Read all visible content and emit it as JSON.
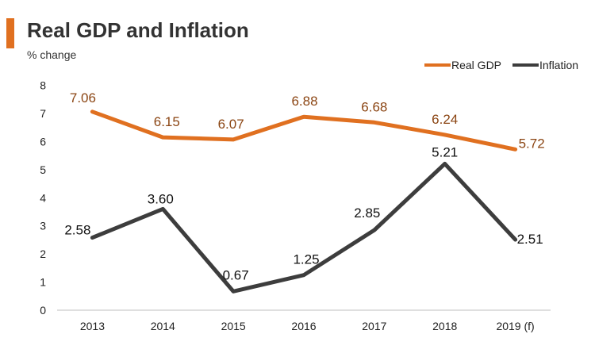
{
  "header": {
    "title": "Real GDP and Inflation",
    "subtitle": "% change"
  },
  "colors": {
    "accent": "#E07020",
    "real_gdp": "#E07020",
    "inflation": "#3D3D3D",
    "gdp_label": "#8B4513"
  },
  "chart_data": {
    "type": "line",
    "title": "Real GDP and Inflation",
    "subtitle": "% change",
    "xlabel": "",
    "ylabel": "% change",
    "categories": [
      "2013",
      "2014",
      "2015",
      "2016",
      "2017",
      "2018",
      "2019 (f)"
    ],
    "ylim": [
      0,
      8
    ],
    "yticks": [
      0,
      1,
      2,
      3,
      4,
      5,
      6,
      7,
      8
    ],
    "legend_position": "top-right",
    "grid": false,
    "series": [
      {
        "name": "Real GDP",
        "values": [
          7.06,
          6.15,
          6.07,
          6.88,
          6.68,
          6.24,
          5.72
        ],
        "labels": [
          "7.06",
          "6.15",
          "6.07",
          "6.88",
          "6.68",
          "6.24",
          "5.72"
        ]
      },
      {
        "name": "Inflation",
        "values": [
          2.58,
          3.6,
          0.67,
          1.25,
          2.85,
          5.21,
          2.51
        ],
        "labels": [
          "2.58",
          "3.60",
          "0.67",
          "1.25",
          "2.85",
          "5.21",
          "2.51"
        ]
      }
    ]
  }
}
